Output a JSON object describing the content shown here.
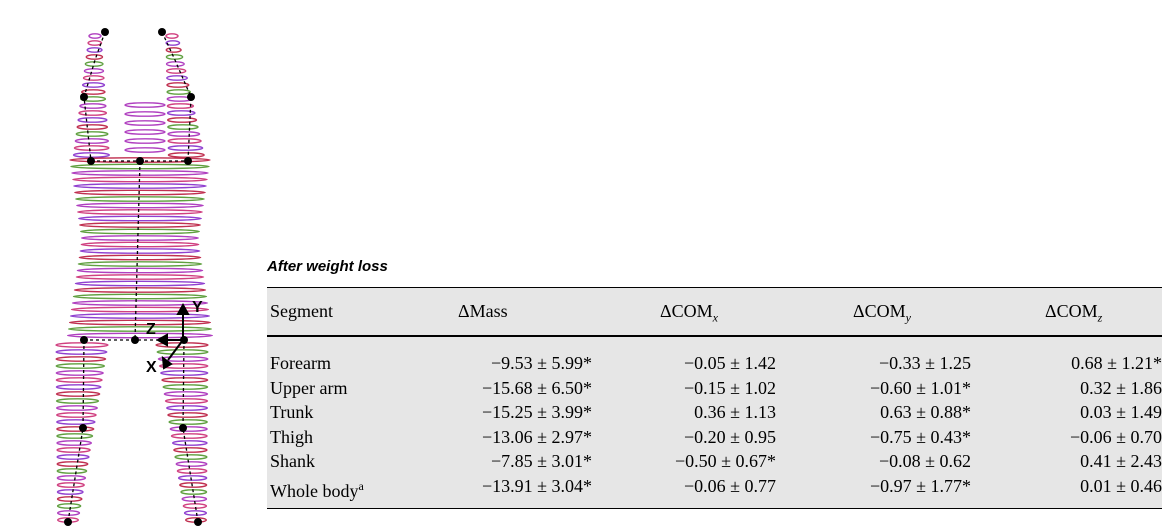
{
  "table": {
    "title": "After weight loss",
    "header": [
      {
        "text": "Segment"
      },
      {
        "text": "ΔMass"
      },
      {
        "text": "ΔCOM",
        "sub": "x"
      },
      {
        "text": "ΔCOM",
        "sub": "y"
      },
      {
        "text": "ΔCOM",
        "sub": "z"
      }
    ],
    "rows": [
      [
        {
          "text": "Forearm"
        },
        "−9.53 ± 5.99*",
        "−0.05 ± 1.42",
        "−0.33 ± 1.25",
        "0.68 ± 1.21*"
      ],
      [
        {
          "text": "Upper arm"
        },
        "−15.68 ± 6.50*",
        "−0.15 ± 1.02",
        "−0.60 ± 1.01*",
        "0.32 ± 1.86"
      ],
      [
        {
          "text": "Trunk"
        },
        "−15.25 ± 3.99*",
        "0.36 ± 1.13",
        "0.63 ± 0.88*",
        "0.03 ± 1.49"
      ],
      [
        {
          "text": "Thigh"
        },
        "−13.06 ± 2.97*",
        "−0.20 ± 0.95",
        "−0.75 ± 0.43*",
        "−0.06 ± 0.70"
      ],
      [
        {
          "text": "Shank"
        },
        "−7.85 ± 3.01*",
        "−0.50 ± 0.67*",
        "−0.08 ± 0.62",
        "0.41 ± 2.43"
      ],
      [
        {
          "text": "Whole body",
          "sup": "a"
        },
        "−13.91 ± 3.04*",
        "−0.06 ± 0.77",
        "−0.97 ± 1.77*",
        "0.01 ± 0.46"
      ]
    ]
  },
  "figure": {
    "axes": {
      "y": "Y",
      "z": "Z",
      "x": "X"
    }
  }
}
